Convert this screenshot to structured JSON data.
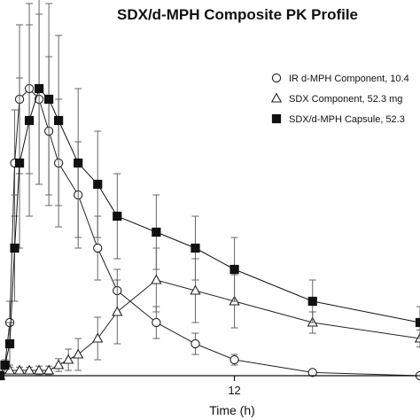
{
  "chart_data": {
    "type": "line",
    "title": "SDX/d-MPH Composite PK Profile",
    "xlabel": "Time (h)",
    "ylabel": "",
    "xlim": [
      0,
      21.5
    ],
    "ylim": [
      0,
      32
    ],
    "x_ticks": [
      12
    ],
    "x_tick_labels": [
      "12"
    ],
    "legend_position": "top-right",
    "series": [
      {
        "name": "IR d-MPH Component, 10.4",
        "marker": "circle-open",
        "color": "#222222",
        "x": [
          0,
          0.25,
          0.5,
          0.75,
          1,
          1.5,
          2,
          2.5,
          3,
          4,
          5,
          6,
          8,
          10,
          12,
          16,
          21.5
        ],
        "y": [
          0,
          1,
          5,
          20,
          26,
          27,
          26,
          23,
          20,
          17,
          12,
          8,
          5,
          3,
          1.5,
          0.3,
          0
        ],
        "err": [
          0,
          0.5,
          2,
          5,
          7,
          8,
          8,
          7,
          6,
          5,
          3,
          2,
          1.5,
          1,
          0.5,
          0.2,
          0
        ]
      },
      {
        "name": "SDX Component, 52.3 mg",
        "marker": "triangle-open",
        "color": "#222222",
        "x": [
          0,
          0.5,
          1,
          1.5,
          2,
          2.5,
          3,
          3.5,
          4,
          5,
          6,
          8,
          10,
          12,
          16,
          21.5
        ],
        "y": [
          0,
          0.5,
          0.5,
          0.5,
          0.5,
          0.5,
          1,
          1.5,
          2,
          3.5,
          6,
          9,
          8,
          7,
          5,
          3.5
        ],
        "err": [
          0,
          0.3,
          0.3,
          0.3,
          0.4,
          0.4,
          0.6,
          1,
          1.5,
          2,
          3,
          3,
          3,
          2.5,
          1,
          0.8
        ]
      },
      {
        "name": "SDX/d-MPH Capsule, 52.3",
        "marker": "square-filled",
        "color": "#111111",
        "x": [
          0,
          0.25,
          0.5,
          0.75,
          1,
          1.5,
          2,
          2.5,
          3,
          4,
          5,
          6,
          8,
          10,
          12,
          16,
          21.5
        ],
        "y": [
          0,
          1,
          3,
          12,
          20,
          24,
          27,
          26,
          24,
          20,
          18,
          15,
          13.5,
          12,
          10,
          7,
          5
        ],
        "err": [
          0,
          0.5,
          2,
          5,
          8,
          9,
          9,
          9,
          8,
          7,
          5,
          4,
          3.5,
          3,
          3,
          2,
          1.5
        ]
      }
    ]
  }
}
